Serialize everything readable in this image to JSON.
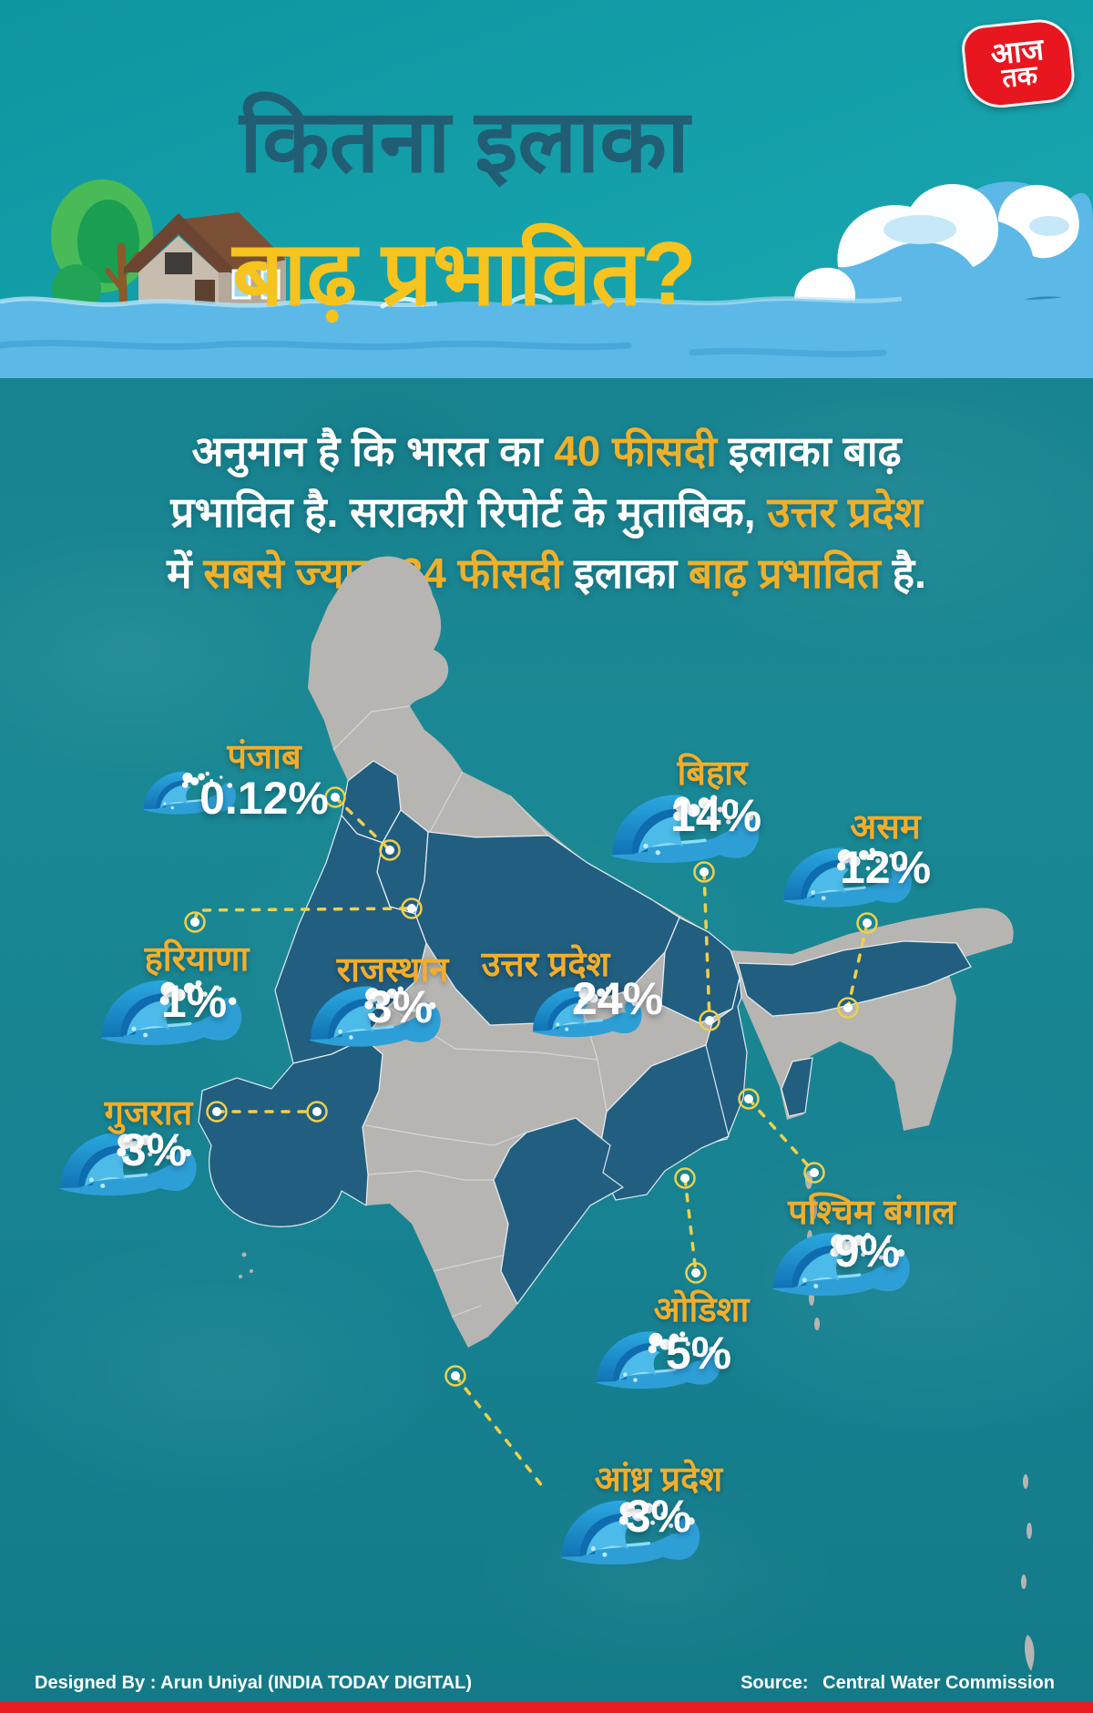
{
  "header": {
    "title_line1": "कितना इलाका",
    "title_line2": "बाढ़ प्रभावित?",
    "logo_line1": "आज",
    "logo_line2": "तक"
  },
  "intro": {
    "lines": [
      {
        "segments": [
          {
            "text": "अनुमान है कि भारत का ",
            "style": "white"
          },
          {
            "text": "40 फीसदी",
            "style": "yellow"
          },
          {
            "text": " इलाका बाढ़",
            "style": "white"
          }
        ]
      },
      {
        "segments": [
          {
            "text": "प्रभावित है. सराकरी रिपोर्ट के मुताबिक, ",
            "style": "white"
          },
          {
            "text": "उत्तर प्रदेश",
            "style": "yellow"
          }
        ]
      },
      {
        "segments": [
          {
            "text": "में ",
            "style": "white"
          },
          {
            "text": "सबसे ज्यादा 24 फीसदी",
            "style": "yellow"
          },
          {
            "text": " इलाका ",
            "style": "white"
          },
          {
            "text": "बाढ़ प्रभावित",
            "style": "yellow"
          },
          {
            "text": " है.",
            "style": "white"
          }
        ]
      }
    ]
  },
  "states": [
    {
      "id": "punjab",
      "name": "पंजाब",
      "value": "0.12%"
    },
    {
      "id": "bihar",
      "name": "बिहार",
      "value": "14%"
    },
    {
      "id": "assam",
      "name": "असम",
      "value": "12%"
    },
    {
      "id": "haryana",
      "name": "हरियाणा",
      "value": "1%"
    },
    {
      "id": "rajasthan",
      "name": "राजस्थान",
      "value": "3%"
    },
    {
      "id": "uttar-pradesh",
      "name": "उत्तर प्रदेश",
      "value": "24%"
    },
    {
      "id": "gujarat",
      "name": "गुजरात",
      "value": "3%"
    },
    {
      "id": "west-bengal",
      "name": "पश्चिम बंगाल",
      "value": "9%"
    },
    {
      "id": "odisha",
      "name": "ओडिशा",
      "value": "5%"
    },
    {
      "id": "andhra-pradesh",
      "name": "आंध्र प्रदेश",
      "value": "3%"
    }
  ],
  "chart_data": {
    "type": "map",
    "title": "कितना इलाका बाढ़ प्रभावित?",
    "region": "India",
    "unit": "%",
    "categories": [
      "पंजाब",
      "बिहार",
      "असम",
      "हरियाणा",
      "राजस्थान",
      "उत्तर प्रदेश",
      "गुजरात",
      "पश्चिम बंगाल",
      "ओडिशा",
      "आंध्र प्रदेश"
    ],
    "values": [
      0.12,
      14,
      12,
      1,
      3,
      24,
      3,
      9,
      5,
      3
    ],
    "note_total_india": "40 फीसदी"
  },
  "colors": {
    "flood_state": "#215e80",
    "land": "#b7b5b2",
    "accent_yellow": "#f2ae2b",
    "title_yellow": "#f7c31e",
    "title_dark": "#215e74",
    "leader_yellow": "#eed04b",
    "logo_red": "#e8161e",
    "footer_bar_red": "#ea1b22"
  },
  "footer": {
    "designed_by": "Designed By : Arun Uniyal (INDIA TODAY DIGITAL)",
    "source_label": "Source:",
    "source_value": "Central Water Commission"
  }
}
